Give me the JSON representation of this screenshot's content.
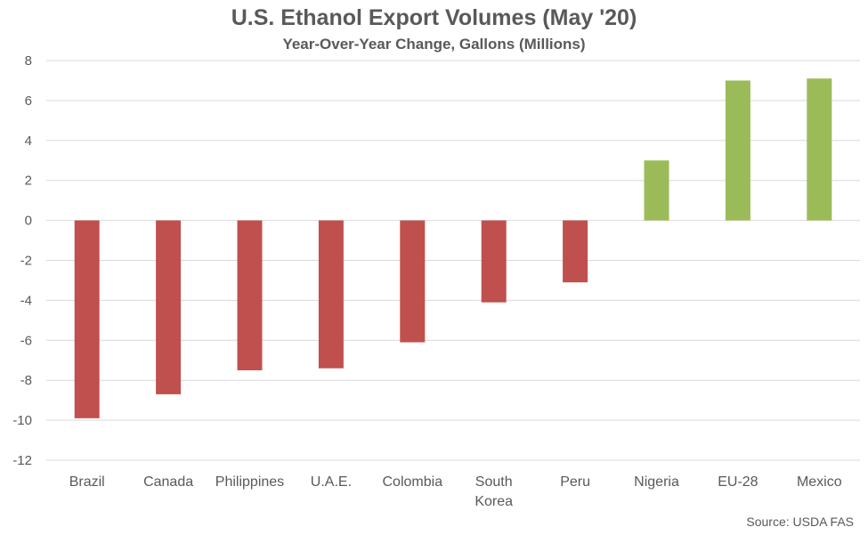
{
  "chart_data": {
    "type": "bar",
    "title": "U.S. Ethanol Export Volumes (May '20)",
    "subtitle": "Year-Over-Year Change, Gallons (Millions)",
    "source": "Source: USDA FAS",
    "categories": [
      "Brazil",
      "Canada",
      "Philippines",
      "U.A.E.",
      "Colombia",
      "South Korea",
      "Peru",
      "Nigeria",
      "EU-28",
      "Mexico"
    ],
    "category_lines": [
      [
        "Brazil"
      ],
      [
        "Canada"
      ],
      [
        "Philippines"
      ],
      [
        "U.A.E."
      ],
      [
        "Colombia"
      ],
      [
        "South",
        "Korea"
      ],
      [
        "Peru"
      ],
      [
        "Nigeria"
      ],
      [
        "EU-28"
      ],
      [
        "Mexico"
      ]
    ],
    "values": [
      -9.9,
      -8.7,
      -7.5,
      -7.4,
      -6.1,
      -4.1,
      -3.1,
      3.0,
      7.0,
      7.1
    ],
    "ylim": [
      -12,
      8
    ],
    "yticks": [
      8,
      6,
      4,
      2,
      0,
      -2,
      -4,
      -6,
      -8,
      -10,
      -12
    ],
    "grid": true,
    "colors": {
      "negative": "#c0504d",
      "positive": "#9bbb59",
      "grid": "#d9d9d9"
    }
  }
}
